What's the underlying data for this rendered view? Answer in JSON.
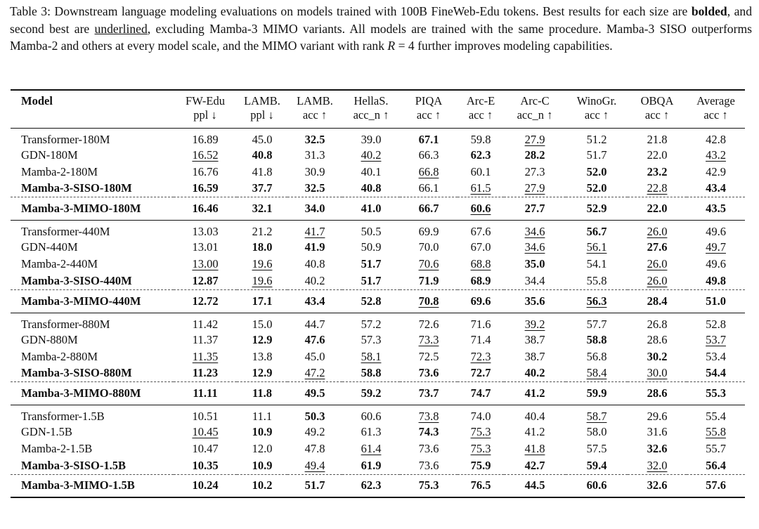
{
  "caption": {
    "part1": "Table 3: Downstream language modeling evaluations on models trained with 100B FineWeb-Edu tokens. Best results for each size are ",
    "bolded": "bolded",
    "part2": ", and second best are ",
    "underlined": "underlined",
    "part3": ", excluding Mamba-3 MIMO variants. All models are trained with the same procedure. Mamba-3 SISO outperforms Mamba-2 and others at every model scale, and the MIMO variant with rank ",
    "rank_symbol": "R",
    "part4": " = 4 further improves modeling capabilities."
  },
  "headers": [
    {
      "top": "Model",
      "bottom": ""
    },
    {
      "top": "FW-Edu",
      "bottom": "ppl ↓"
    },
    {
      "top": "LAMB.",
      "bottom": "ppl ↓"
    },
    {
      "top": "LAMB.",
      "bottom": "acc ↑"
    },
    {
      "top": "HellaS.",
      "bottom": "acc_n ↑"
    },
    {
      "top": "PIQA",
      "bottom": "acc ↑"
    },
    {
      "top": "Arc-E",
      "bottom": "acc ↑"
    },
    {
      "top": "Arc-C",
      "bottom": "acc_n ↑"
    },
    {
      "top": "WinoGr.",
      "bottom": "acc ↑"
    },
    {
      "top": "OBQA",
      "bottom": "acc ↑"
    },
    {
      "top": "Average",
      "bottom": "acc ↑"
    }
  ],
  "blocks": [
    {
      "rows": [
        {
          "model": "Transformer-180M",
          "model_bold": false,
          "values": [
            "16.89",
            "45.0",
            "32.5",
            "39.0",
            "67.1",
            "59.8",
            "27.9",
            "51.2",
            "21.8",
            "42.8"
          ],
          "fmt": [
            "",
            "",
            "b",
            "",
            "b",
            "",
            "u",
            "",
            "",
            ""
          ]
        },
        {
          "model": "GDN-180M",
          "model_bold": false,
          "values": [
            "16.52",
            "40.8",
            "31.3",
            "40.2",
            "66.3",
            "62.3",
            "28.2",
            "51.7",
            "22.0",
            "43.2"
          ],
          "fmt": [
            "u",
            "b",
            "",
            "u",
            "",
            "b",
            "b",
            "",
            "",
            "u"
          ]
        },
        {
          "model": "Mamba-2-180M",
          "model_bold": false,
          "values": [
            "16.76",
            "41.8",
            "30.9",
            "40.1",
            "66.8",
            "60.1",
            "27.3",
            "52.0",
            "23.2",
            "42.9"
          ],
          "fmt": [
            "",
            "",
            "",
            "",
            "u",
            "",
            "",
            "b",
            "b",
            ""
          ]
        },
        {
          "model": "Mamba-3-SISO-180M",
          "model_bold": true,
          "values": [
            "16.59",
            "37.7",
            "32.5",
            "40.8",
            "66.1",
            "61.5",
            "27.9",
            "52.0",
            "22.8",
            "43.4"
          ],
          "fmt": [
            "b",
            "b",
            "b",
            "b",
            "",
            "u",
            "u",
            "b",
            "u",
            "b"
          ]
        },
        {
          "model": "Mamba-3-MIMO-180M",
          "model_bold": true,
          "mimo": true,
          "values": [
            "16.46",
            "32.1",
            "34.0",
            "41.0",
            "66.7",
            "60.6",
            "27.7",
            "52.9",
            "22.0",
            "43.5"
          ],
          "fmt": [
            "b",
            "b",
            "b",
            "b",
            "b",
            "bu",
            "b",
            "b",
            "b",
            "b"
          ]
        }
      ]
    },
    {
      "rows": [
        {
          "model": "Transformer-440M",
          "model_bold": false,
          "values": [
            "13.03",
            "21.2",
            "41.7",
            "50.5",
            "69.9",
            "67.6",
            "34.6",
            "56.7",
            "26.0",
            "49.6"
          ],
          "fmt": [
            "",
            "",
            "u",
            "",
            "",
            "",
            "u",
            "b",
            "u",
            ""
          ]
        },
        {
          "model": "GDN-440M",
          "model_bold": false,
          "values": [
            "13.01",
            "18.0",
            "41.9",
            "50.9",
            "70.0",
            "67.0",
            "34.6",
            "56.1",
            "27.6",
            "49.7"
          ],
          "fmt": [
            "",
            "b",
            "b",
            "",
            "",
            "",
            "u",
            "u",
            "b",
            "u"
          ]
        },
        {
          "model": "Mamba-2-440M",
          "model_bold": false,
          "values": [
            "13.00",
            "19.6",
            "40.8",
            "51.7",
            "70.6",
            "68.8",
            "35.0",
            "54.1",
            "26.0",
            "49.6"
          ],
          "fmt": [
            "u",
            "u",
            "",
            "b",
            "u",
            "u",
            "b",
            "",
            "u",
            ""
          ]
        },
        {
          "model": "Mamba-3-SISO-440M",
          "model_bold": true,
          "values": [
            "12.87",
            "19.6",
            "40.2",
            "51.7",
            "71.9",
            "68.9",
            "34.4",
            "55.8",
            "26.0",
            "49.8"
          ],
          "fmt": [
            "b",
            "u",
            "",
            "b",
            "b",
            "b",
            "",
            "",
            "u",
            "b"
          ]
        },
        {
          "model": "Mamba-3-MIMO-440M",
          "model_bold": true,
          "mimo": true,
          "values": [
            "12.72",
            "17.1",
            "43.4",
            "52.8",
            "70.8",
            "69.6",
            "35.6",
            "56.3",
            "28.4",
            "51.0"
          ],
          "fmt": [
            "b",
            "b",
            "b",
            "b",
            "bu",
            "b",
            "b",
            "bu",
            "b",
            "b"
          ]
        }
      ]
    },
    {
      "rows": [
        {
          "model": "Transformer-880M",
          "model_bold": false,
          "values": [
            "11.42",
            "15.0",
            "44.7",
            "57.2",
            "72.6",
            "71.6",
            "39.2",
            "57.7",
            "26.8",
            "52.8"
          ],
          "fmt": [
            "",
            "",
            "",
            "",
            "",
            "",
            "u",
            "",
            "",
            ""
          ]
        },
        {
          "model": "GDN-880M",
          "model_bold": false,
          "values": [
            "11.37",
            "12.9",
            "47.6",
            "57.3",
            "73.3",
            "71.4",
            "38.7",
            "58.8",
            "28.6",
            "53.7"
          ],
          "fmt": [
            "",
            "b",
            "b",
            "",
            "u",
            "",
            "",
            "b",
            "",
            "u"
          ]
        },
        {
          "model": "Mamba-2-880M",
          "model_bold": false,
          "values": [
            "11.35",
            "13.8",
            "45.0",
            "58.1",
            "72.5",
            "72.3",
            "38.7",
            "56.8",
            "30.2",
            "53.4"
          ],
          "fmt": [
            "u",
            "",
            "",
            "u",
            "",
            "u",
            "",
            "",
            "b",
            ""
          ]
        },
        {
          "model": "Mamba-3-SISO-880M",
          "model_bold": true,
          "values": [
            "11.23",
            "12.9",
            "47.2",
            "58.8",
            "73.6",
            "72.7",
            "40.2",
            "58.4",
            "30.0",
            "54.4"
          ],
          "fmt": [
            "b",
            "b",
            "u",
            "b",
            "b",
            "b",
            "b",
            "u",
            "u",
            "b"
          ]
        },
        {
          "model": "Mamba-3-MIMO-880M",
          "model_bold": true,
          "mimo": true,
          "values": [
            "11.11",
            "11.8",
            "49.5",
            "59.2",
            "73.7",
            "74.7",
            "41.2",
            "59.9",
            "28.6",
            "55.3"
          ],
          "fmt": [
            "b",
            "b",
            "b",
            "b",
            "b",
            "b",
            "b",
            "b",
            "b",
            "b"
          ]
        }
      ]
    },
    {
      "rows": [
        {
          "model": "Transformer-1.5B",
          "model_bold": false,
          "values": [
            "10.51",
            "11.1",
            "50.3",
            "60.6",
            "73.8",
            "74.0",
            "40.4",
            "58.7",
            "29.6",
            "55.4"
          ],
          "fmt": [
            "",
            "",
            "b",
            "",
            "u",
            "",
            "",
            "u",
            "",
            ""
          ]
        },
        {
          "model": "GDN-1.5B",
          "model_bold": false,
          "values": [
            "10.45",
            "10.9",
            "49.2",
            "61.3",
            "74.3",
            "75.3",
            "41.2",
            "58.0",
            "31.6",
            "55.8"
          ],
          "fmt": [
            "u",
            "b",
            "",
            "",
            "b",
            "u",
            "",
            "",
            "",
            "u"
          ]
        },
        {
          "model": "Mamba-2-1.5B",
          "model_bold": false,
          "values": [
            "10.47",
            "12.0",
            "47.8",
            "61.4",
            "73.6",
            "75.3",
            "41.8",
            "57.5",
            "32.6",
            "55.7"
          ],
          "fmt": [
            "",
            "",
            "",
            "u",
            "",
            "u",
            "u",
            "",
            "b",
            ""
          ]
        },
        {
          "model": "Mamba-3-SISO-1.5B",
          "model_bold": true,
          "values": [
            "10.35",
            "10.9",
            "49.4",
            "61.9",
            "73.6",
            "75.9",
            "42.7",
            "59.4",
            "32.0",
            "56.4"
          ],
          "fmt": [
            "b",
            "b",
            "u",
            "b",
            "",
            "b",
            "b",
            "b",
            "u",
            "b"
          ]
        },
        {
          "model": "Mamba-3-MIMO-1.5B",
          "model_bold": true,
          "mimo": true,
          "values": [
            "10.24",
            "10.2",
            "51.7",
            "62.3",
            "75.3",
            "76.5",
            "44.5",
            "60.6",
            "32.6",
            "57.6"
          ],
          "fmt": [
            "b",
            "b",
            "b",
            "b",
            "b",
            "b",
            "b",
            "b",
            "b",
            "b"
          ]
        }
      ]
    }
  ]
}
